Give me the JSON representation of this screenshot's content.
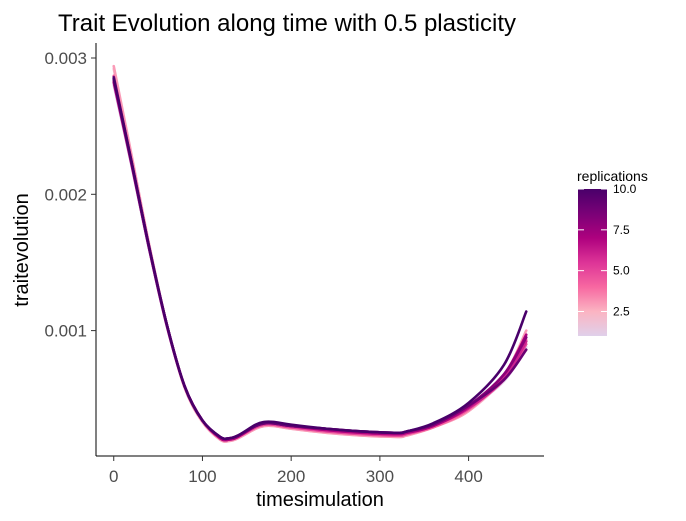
{
  "chart_data": {
    "type": "line",
    "title": "Trait Evolution along time with 0.5 plasticity",
    "xlabel": "timesimulation",
    "ylabel": "traitevolution",
    "xlim": [
      -20,
      485
    ],
    "ylim": [
      8e-05,
      0.00311
    ],
    "x_ticks": [
      0,
      100,
      200,
      300,
      400
    ],
    "x_tick_labels": [
      "0",
      "100",
      "200",
      "300",
      "400"
    ],
    "y_ticks": [
      0.001,
      0.002,
      0.003
    ],
    "y_tick_labels": [
      "0.001",
      "0.002",
      "0.003"
    ],
    "grid": false,
    "legend": {
      "title": "replications",
      "position": "right",
      "type": "colorbar",
      "range": [
        1,
        10
      ],
      "ticks": [
        2.5,
        5.0,
        7.5,
        10.0
      ],
      "tick_labels": [
        "2.5",
        "5.0",
        "7.5",
        "10.0"
      ],
      "colors": [
        "#e0d0ea",
        "#fbb4c2",
        "#f768a1",
        "#dd3497",
        "#ae017e",
        "#7a0177",
        "#49006a"
      ]
    },
    "series": [
      {
        "replication": 1,
        "x": [
          0,
          20,
          40,
          60,
          80,
          100,
          120,
          130,
          140,
          160,
          170,
          180,
          200,
          240,
          280,
          320,
          330,
          360,
          400,
          440,
          465
        ],
        "y": [
          0.0028,
          0.00221,
          0.00159,
          0.00103,
          0.00059,
          0.00034,
          0.00021,
          0.0002,
          0.00022,
          0.00029,
          0.00031,
          0.00031,
          0.00029,
          0.00027,
          0.00025,
          0.00024,
          0.00025,
          0.0003,
          0.00043,
          0.00063,
          0.00088
        ]
      },
      {
        "replication": 2,
        "x": [
          0,
          20,
          40,
          60,
          80,
          100,
          120,
          130,
          140,
          160,
          170,
          180,
          200,
          240,
          280,
          320,
          330,
          360,
          400,
          440,
          465
        ],
        "y": [
          0.00292,
          0.00228,
          0.00162,
          0.00104,
          0.00058,
          0.00033,
          0.0002,
          0.00019,
          0.00021,
          0.00028,
          0.0003,
          0.0003,
          0.00028,
          0.00025,
          0.00023,
          0.00022,
          0.00023,
          0.00029,
          0.00041,
          0.00065,
          0.00095
        ]
      },
      {
        "replication": 3,
        "x": [
          0,
          20,
          40,
          60,
          80,
          100,
          120,
          130,
          140,
          160,
          170,
          180,
          200,
          240,
          280,
          320,
          330,
          360,
          400,
          440,
          465
        ],
        "y": [
          0.00294,
          0.00229,
          0.00163,
          0.00104,
          0.00058,
          0.00033,
          0.0002,
          0.00019,
          0.00021,
          0.00028,
          0.0003,
          0.0003,
          0.00028,
          0.00025,
          0.00023,
          0.00022,
          0.00023,
          0.00029,
          0.00041,
          0.00067,
          0.001
        ]
      },
      {
        "replication": 4,
        "x": [
          0,
          20,
          40,
          60,
          80,
          100,
          120,
          130,
          140,
          160,
          170,
          180,
          200,
          240,
          280,
          320,
          330,
          360,
          400,
          440,
          465
        ],
        "y": [
          0.00287,
          0.00225,
          0.00161,
          0.00104,
          0.00059,
          0.00034,
          0.00021,
          0.0002,
          0.00022,
          0.00029,
          0.00031,
          0.00031,
          0.00029,
          0.00026,
          0.00024,
          0.00023,
          0.00024,
          0.00029,
          0.00042,
          0.00066,
          0.00093
        ]
      },
      {
        "replication": 5,
        "x": [
          0,
          20,
          40,
          60,
          80,
          100,
          120,
          130,
          140,
          160,
          170,
          180,
          200,
          240,
          280,
          320,
          330,
          360,
          400,
          440,
          465
        ],
        "y": [
          0.00285,
          0.00224,
          0.00161,
          0.00104,
          0.00059,
          0.00034,
          0.00021,
          0.0002,
          0.00022,
          0.00029,
          0.00031,
          0.00031,
          0.00029,
          0.00026,
          0.00024,
          0.00023,
          0.00024,
          0.0003,
          0.00043,
          0.00064,
          0.0009
        ]
      },
      {
        "replication": 6,
        "x": [
          0,
          20,
          40,
          60,
          80,
          100,
          120,
          130,
          140,
          160,
          170,
          180,
          200,
          240,
          280,
          320,
          330,
          360,
          400,
          440,
          465
        ],
        "y": [
          0.00283,
          0.00223,
          0.0016,
          0.00104,
          0.00059,
          0.00034,
          0.00021,
          0.0002,
          0.00022,
          0.0003,
          0.00032,
          0.00032,
          0.0003,
          0.00027,
          0.00025,
          0.00024,
          0.00025,
          0.0003,
          0.00043,
          0.00065,
          0.00092
        ]
      },
      {
        "replication": 7,
        "x": [
          0,
          20,
          40,
          60,
          80,
          100,
          120,
          130,
          140,
          160,
          170,
          180,
          200,
          240,
          280,
          320,
          330,
          360,
          400,
          440,
          465
        ],
        "y": [
          0.00282,
          0.00222,
          0.0016,
          0.00103,
          0.00059,
          0.00034,
          0.00021,
          0.0002,
          0.00022,
          0.0003,
          0.00032,
          0.00032,
          0.0003,
          0.00027,
          0.00025,
          0.00024,
          0.00025,
          0.0003,
          0.00044,
          0.00068,
          0.00097
        ]
      },
      {
        "replication": 8,
        "x": [
          0,
          20,
          40,
          60,
          80,
          100,
          120,
          130,
          140,
          160,
          170,
          180,
          200,
          240,
          280,
          320,
          330,
          360,
          400,
          440,
          465
        ],
        "y": [
          0.00284,
          0.00223,
          0.0016,
          0.00104,
          0.00059,
          0.00034,
          0.00022,
          0.00021,
          0.00023,
          0.0003,
          0.00032,
          0.00032,
          0.0003,
          0.00028,
          0.00026,
          0.00025,
          0.00026,
          0.00031,
          0.00045,
          0.00068,
          0.00095
        ]
      },
      {
        "replication": 9,
        "x": [
          0,
          20,
          40,
          60,
          80,
          100,
          120,
          130,
          140,
          160,
          170,
          180,
          200,
          240,
          280,
          320,
          330,
          360,
          400,
          440,
          465
        ],
        "y": [
          0.00286,
          0.00224,
          0.00161,
          0.00104,
          0.00059,
          0.00034,
          0.00022,
          0.00021,
          0.00023,
          0.0003,
          0.00032,
          0.00032,
          0.0003,
          0.00028,
          0.00026,
          0.00025,
          0.00026,
          0.00031,
          0.00045,
          0.00064,
          0.00086
        ]
      },
      {
        "replication": 10,
        "x": [
          0,
          20,
          40,
          60,
          80,
          100,
          120,
          130,
          140,
          160,
          170,
          180,
          200,
          240,
          280,
          320,
          330,
          360,
          400,
          440,
          465
        ],
        "y": [
          0.00285,
          0.00224,
          0.00161,
          0.00104,
          0.00059,
          0.00034,
          0.00022,
          0.00021,
          0.00023,
          0.00031,
          0.00033,
          0.00033,
          0.00031,
          0.00028,
          0.00026,
          0.00025,
          0.00026,
          0.00032,
          0.00047,
          0.00075,
          0.00114
        ]
      }
    ]
  }
}
